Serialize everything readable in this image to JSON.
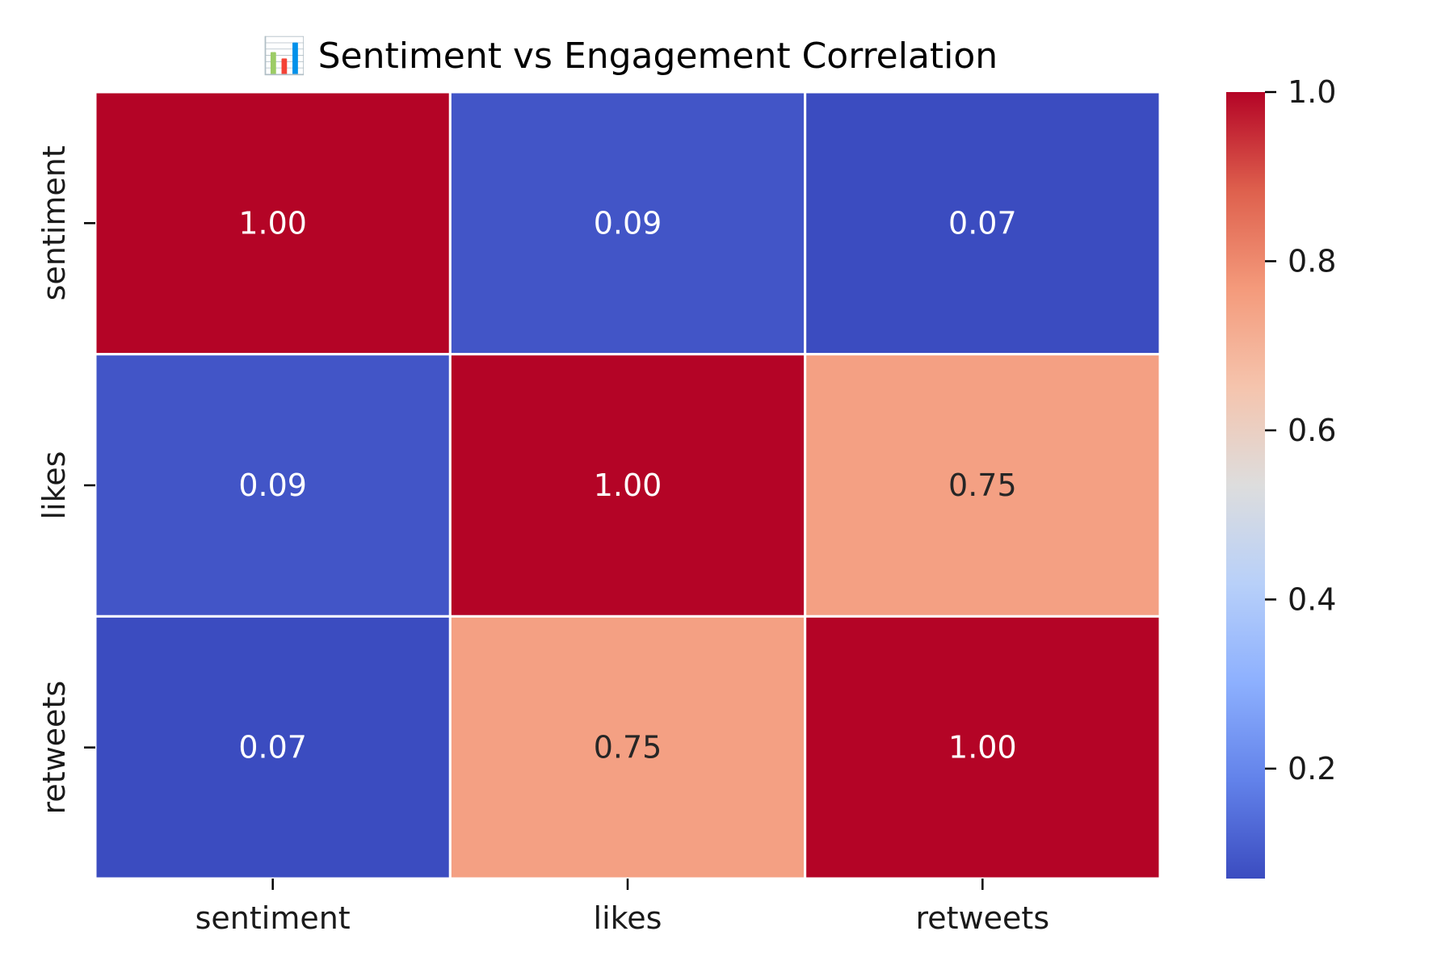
{
  "chart_data": {
    "type": "heatmap",
    "title": "📊 Sentiment vs Engagement Correlation",
    "rows": [
      "sentiment",
      "likes",
      "retweets"
    ],
    "columns": [
      "sentiment",
      "likes",
      "retweets"
    ],
    "values": [
      [
        1.0,
        0.09,
        0.07
      ],
      [
        0.09,
        1.0,
        0.75
      ],
      [
        0.07,
        0.75,
        1.0
      ]
    ],
    "value_labels": [
      [
        "1.00",
        "0.09",
        "0.07"
      ],
      [
        "0.09",
        "1.00",
        "0.75"
      ],
      [
        "0.07",
        "0.75",
        "1.00"
      ]
    ],
    "colormap": "coolwarm",
    "colorbar": {
      "range": [
        0.07,
        1.0
      ],
      "ticks": [
        0.2,
        0.4,
        0.6,
        0.8,
        1.0
      ],
      "tick_labels": [
        "0.2",
        "0.4",
        "0.6",
        "0.8",
        "1.0"
      ],
      "placement": "right"
    },
    "grid_line_color": "#ffffff"
  }
}
